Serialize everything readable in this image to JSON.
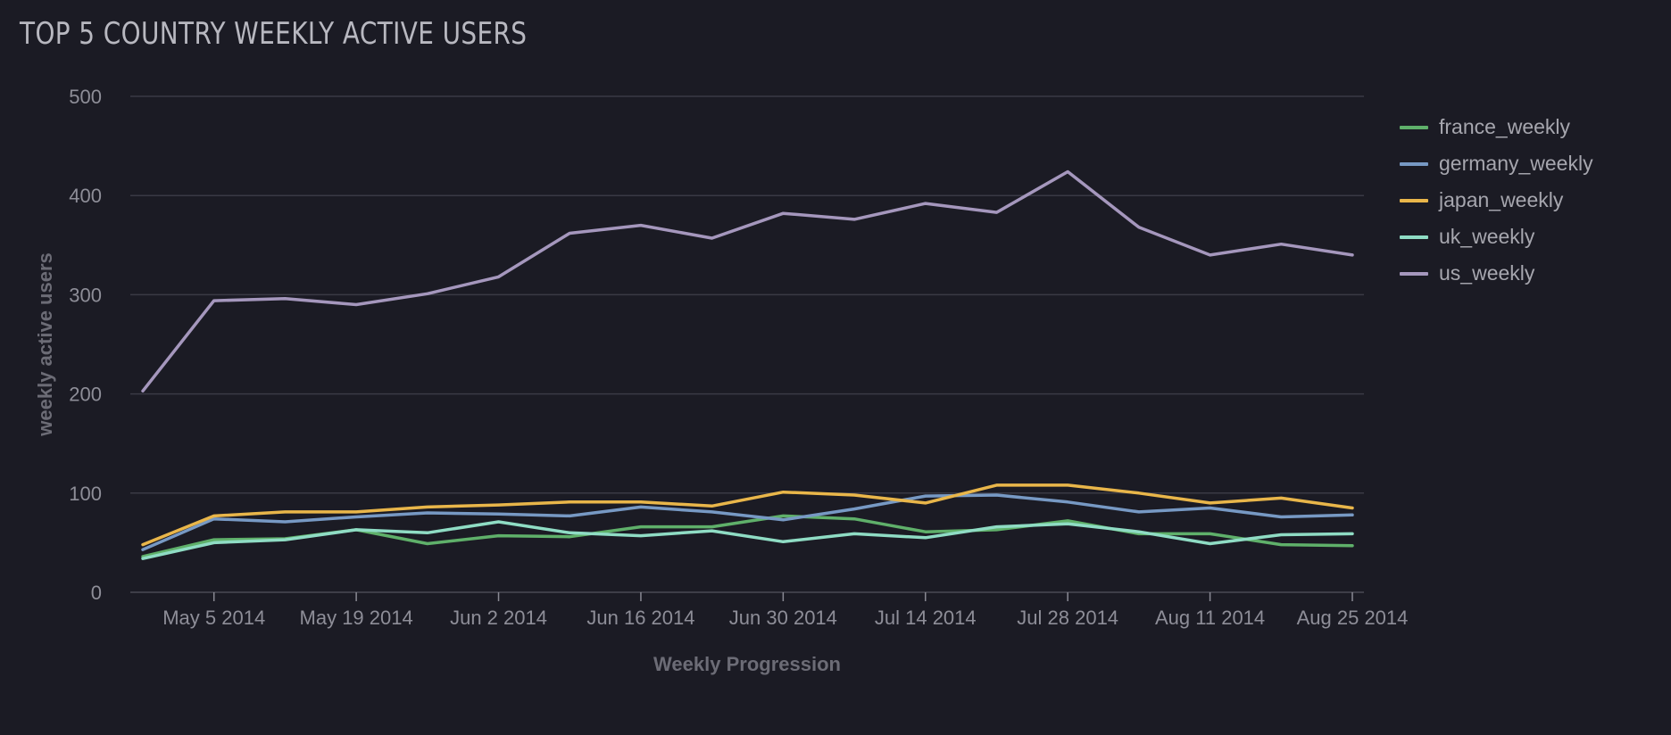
{
  "chart_data": {
    "type": "line",
    "title": "TOP 5 COUNTRY WEEKLY ACTIVE USERS",
    "xlabel": "Weekly Progression",
    "ylabel": "weekly active users",
    "ylim": [
      0,
      500
    ],
    "yticks": [
      "0",
      "100",
      "200",
      "300",
      "400",
      "500"
    ],
    "x": [
      "2014-04-28",
      "2014-05-05",
      "2014-05-12",
      "2014-05-19",
      "2014-05-26",
      "2014-06-02",
      "2014-06-09",
      "2014-06-16",
      "2014-06-23",
      "2014-06-30",
      "2014-07-07",
      "2014-07-14",
      "2014-07-21",
      "2014-07-28",
      "2014-08-04",
      "2014-08-11",
      "2014-08-18",
      "2014-08-25"
    ],
    "xticks": [
      {
        "date": "2014-05-05",
        "label": "May 5 2014"
      },
      {
        "date": "2014-05-19",
        "label": "May 19 2014"
      },
      {
        "date": "2014-06-02",
        "label": "Jun 2 2014"
      },
      {
        "date": "2014-06-16",
        "label": "Jun 16 2014"
      },
      {
        "date": "2014-06-30",
        "label": "Jun 30 2014"
      },
      {
        "date": "2014-07-14",
        "label": "Jul 14 2014"
      },
      {
        "date": "2014-07-28",
        "label": "Jul 28 2014"
      },
      {
        "date": "2014-08-11",
        "label": "Aug 11 2014"
      },
      {
        "date": "2014-08-25",
        "label": "Aug 25 2014"
      }
    ],
    "grid": "horizontal",
    "legend_position": "right",
    "series": [
      {
        "name": "france_weekly",
        "color": "#5fb06a",
        "values": [
          36,
          53,
          54,
          63,
          49,
          57,
          56,
          66,
          66,
          77,
          74,
          61,
          63,
          72,
          59,
          59,
          48,
          47
        ]
      },
      {
        "name": "germany_weekly",
        "color": "#7799c4",
        "values": [
          43,
          74,
          71,
          76,
          80,
          79,
          77,
          86,
          81,
          73,
          84,
          97,
          98,
          91,
          81,
          85,
          76,
          78
        ]
      },
      {
        "name": "japan_weekly",
        "color": "#e9b64a",
        "values": [
          48,
          77,
          81,
          81,
          86,
          88,
          91,
          91,
          87,
          101,
          98,
          90,
          108,
          108,
          100,
          90,
          95,
          85
        ]
      },
      {
        "name": "uk_weekly",
        "color": "#8fdcc4",
        "values": [
          34,
          50,
          53,
          63,
          60,
          71,
          60,
          57,
          62,
          51,
          59,
          55,
          66,
          69,
          61,
          49,
          58,
          59
        ]
      },
      {
        "name": "us_weekly",
        "color": "#a597bd",
        "values": [
          203,
          294,
          296,
          290,
          301,
          318,
          362,
          370,
          357,
          382,
          376,
          392,
          383,
          424,
          368,
          340,
          351,
          340
        ]
      }
    ]
  }
}
